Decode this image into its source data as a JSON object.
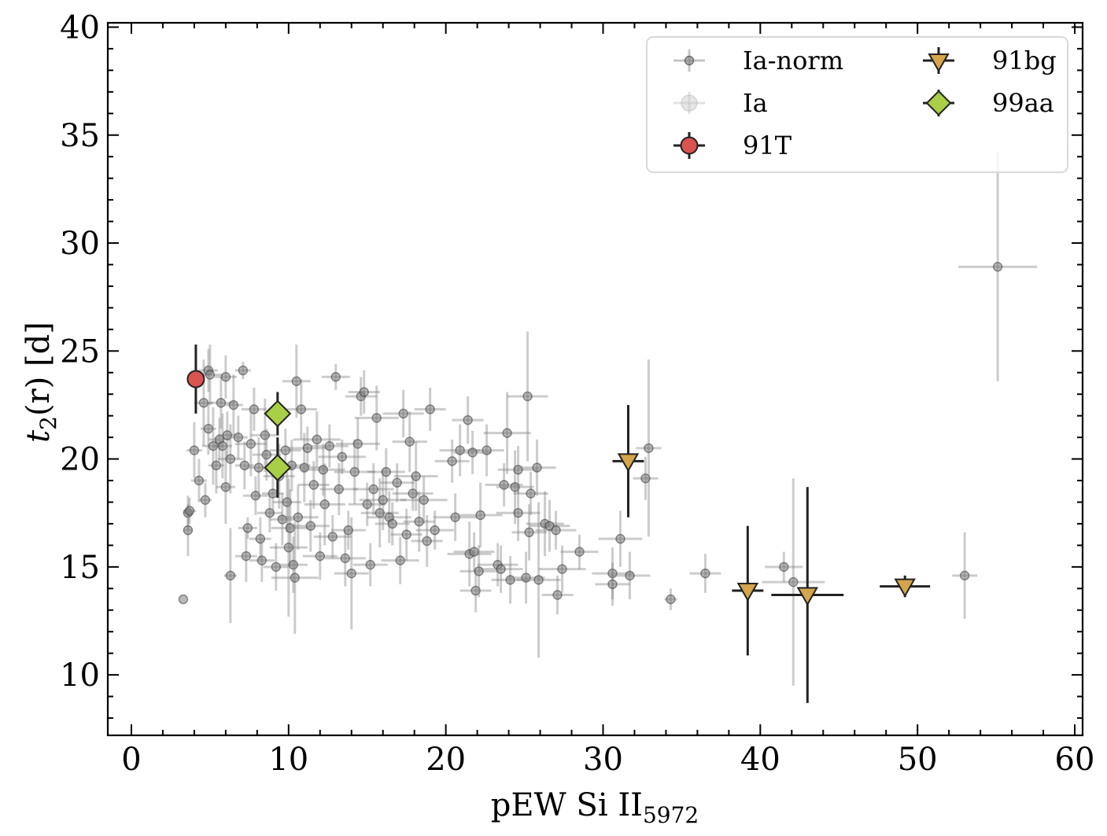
{
  "chart_data": {
    "type": "scatter",
    "title": "",
    "xlabel": {
      "main": "pEW Si II",
      "subscript": "5972"
    },
    "ylabel": {
      "t": "t",
      "sub": "2",
      "rest": "(r) [d]"
    },
    "xlim": [
      -1.5,
      60.5
    ],
    "ylim": [
      7.2,
      40.2
    ],
    "xticks": [
      0,
      10,
      20,
      30,
      40,
      50,
      60
    ],
    "yticks": [
      10,
      15,
      20,
      25,
      30,
      35,
      40
    ],
    "xtick_labels": [
      "0",
      "10",
      "20",
      "30",
      "40",
      "50",
      "60"
    ],
    "ytick_labels": [
      "10",
      "15",
      "20",
      "25",
      "30",
      "35",
      "40"
    ],
    "legend": {
      "position": "top-right",
      "entries": [
        {
          "name": "Ia-norm",
          "marker": "circle-small",
          "color": "#808080"
        },
        {
          "name": "Ia",
          "marker": "circle-faint",
          "color": "#c8c8c8"
        },
        {
          "name": "91T",
          "marker": "circle",
          "color": "#d9534f"
        },
        {
          "name": "91bg",
          "marker": "triangle-down",
          "color": "#d4a54c"
        },
        {
          "name": "99aa",
          "marker": "diamond",
          "color": "#a8cf45"
        }
      ]
    },
    "series": [
      {
        "name": "Ia-norm",
        "color": "#808080",
        "points": [
          [
            3.3,
            13.5,
            0,
            0
          ],
          [
            3.6,
            17.5,
            0.3,
            0.8
          ],
          [
            3.6,
            16.7,
            0.3,
            1.2
          ],
          [
            3.7,
            17.6,
            0.4,
            0.6
          ],
          [
            4.0,
            20.4,
            0.5,
            1.3
          ],
          [
            4.3,
            19.0,
            0.5,
            1.0
          ],
          [
            4.6,
            22.6,
            0.6,
            2.0
          ],
          [
            4.7,
            18.1,
            0.4,
            0.8
          ],
          [
            4.9,
            24.1,
            0.6,
            1.0
          ],
          [
            5.0,
            23.9,
            0.8,
            1.4
          ],
          [
            4.9,
            21.4,
            0.5,
            1.2
          ],
          [
            5.2,
            20.6,
            0.7,
            1.8
          ],
          [
            5.4,
            19.7,
            0.5,
            1.3
          ],
          [
            5.6,
            20.9,
            0.7,
            1.0
          ],
          [
            5.7,
            22.6,
            0.9,
            1.2
          ],
          [
            5.8,
            20.6,
            0.6,
            1.5
          ],
          [
            6.0,
            23.8,
            0.7,
            1.0
          ],
          [
            6.0,
            18.7,
            0.6,
            1.7
          ],
          [
            6.1,
            21.1,
            0.6,
            1.1
          ],
          [
            6.3,
            20.0,
            0.8,
            1.6
          ],
          [
            6.3,
            14.6,
            0.4,
            2.2
          ],
          [
            6.5,
            22.5,
            0.6,
            1.4
          ],
          [
            6.8,
            21.0,
            0.6,
            1.0
          ],
          [
            7.1,
            24.1,
            0.5,
            0.4
          ],
          [
            7.2,
            19.7,
            0.6,
            1.1
          ],
          [
            7.3,
            15.5,
            0.7,
            1.2
          ],
          [
            7.4,
            16.8,
            0.6,
            0.5
          ],
          [
            7.6,
            20.7,
            1.0,
            1.5
          ],
          [
            7.8,
            22.3,
            0.8,
            1.0
          ],
          [
            7.9,
            18.3,
            0.8,
            0.9
          ],
          [
            8.1,
            19.6,
            0.8,
            1.4
          ],
          [
            8.2,
            16.3,
            0.7,
            1.0
          ],
          [
            8.3,
            15.3,
            0.8,
            1.0
          ],
          [
            8.5,
            21.1,
            0.9,
            1.7
          ],
          [
            8.6,
            20.2,
            0.9,
            1.2
          ],
          [
            8.8,
            17.5,
            0.8,
            0.9
          ],
          [
            9.0,
            18.4,
            0.7,
            1.0
          ],
          [
            9.2,
            15.0,
            0.8,
            1.1
          ],
          [
            9.4,
            19.2,
            1.0,
            1.5
          ],
          [
            9.6,
            17.2,
            0.8,
            1.2
          ],
          [
            9.8,
            20.4,
            1.0,
            1.0
          ],
          [
            9.9,
            18.0,
            0.9,
            1.4
          ],
          [
            10.0,
            15.9,
            1.2,
            3.2
          ],
          [
            10.1,
            16.8,
            1.2,
            1.8
          ],
          [
            10.2,
            19.7,
            1.2,
            1.2
          ],
          [
            10.3,
            15.1,
            0.9,
            1.3
          ],
          [
            10.4,
            14.5,
            1.5,
            2.6
          ],
          [
            10.5,
            23.6,
            0.9,
            1.7
          ],
          [
            10.6,
            17.3,
            1.3,
            1.5
          ],
          [
            10.8,
            22.3,
            1.0,
            1.4
          ],
          [
            11.0,
            19.6,
            1.4,
            1.6
          ],
          [
            11.2,
            20.5,
            1.3,
            1.0
          ],
          [
            11.4,
            16.9,
            1.2,
            1.2
          ],
          [
            11.6,
            18.8,
            1.0,
            1.1
          ],
          [
            11.8,
            20.9,
            1.5,
            1.3
          ],
          [
            12.0,
            15.5,
            1.1,
            1.1
          ],
          [
            12.2,
            19.5,
            1.4,
            1.2
          ],
          [
            12.3,
            17.9,
            1.3,
            1.9
          ],
          [
            12.6,
            20.6,
            1.2,
            1.0
          ],
          [
            12.8,
            16.4,
            1.2,
            1.0
          ],
          [
            13.0,
            23.8,
            0.9,
            0.6
          ],
          [
            13.2,
            18.6,
            1.2,
            1.2
          ],
          [
            13.4,
            20.1,
            1.5,
            0.8
          ],
          [
            13.6,
            15.4,
            1.3,
            1.3
          ],
          [
            13.8,
            16.7,
            1.1,
            0.9
          ],
          [
            14.0,
            14.7,
            1.1,
            2.6
          ],
          [
            14.2,
            19.4,
            1.3,
            1.5
          ],
          [
            14.4,
            20.7,
            1.4,
            1.2
          ],
          [
            14.6,
            22.9,
            1.0,
            0.9
          ],
          [
            14.8,
            23.1,
            1.0,
            1.0
          ],
          [
            15.0,
            17.9,
            1.2,
            1.0
          ],
          [
            15.2,
            15.1,
            1.1,
            1.0
          ],
          [
            15.4,
            18.6,
            1.3,
            1.2
          ],
          [
            15.6,
            21.9,
            1.4,
            1.5
          ],
          [
            15.8,
            17.5,
            1.2,
            1.6
          ],
          [
            16.0,
            18.1,
            1.5,
            1.4
          ],
          [
            16.2,
            19.4,
            1.2,
            1.1
          ],
          [
            16.4,
            17.3,
            1.4,
            1.2
          ],
          [
            16.6,
            17.0,
            1.1,
            1.0
          ],
          [
            16.9,
            18.9,
            1.1,
            0.9
          ],
          [
            17.1,
            15.3,
            1.2,
            1.1
          ],
          [
            17.3,
            22.1,
            1.3,
            1.1
          ],
          [
            17.5,
            16.5,
            1.0,
            1.2
          ],
          [
            17.7,
            20.8,
            1.1,
            1.4
          ],
          [
            17.9,
            18.4,
            1.3,
            0.8
          ],
          [
            18.1,
            19.2,
            1.4,
            1.6
          ],
          [
            18.3,
            17.1,
            1.0,
            1.4
          ],
          [
            18.6,
            18.1,
            1.5,
            1.1
          ],
          [
            18.8,
            16.2,
            1.0,
            1.2
          ],
          [
            19.0,
            22.3,
            1.0,
            1.0
          ],
          [
            19.3,
            16.7,
            1.2,
            0.9
          ],
          [
            20.4,
            19.9,
            1.1,
            1.0
          ],
          [
            20.6,
            17.3,
            1.4,
            1.1
          ],
          [
            20.9,
            20.4,
            1.3,
            1.2
          ],
          [
            21.4,
            21.8,
            1.0,
            1.1
          ],
          [
            21.5,
            15.6,
            1.4,
            1.5
          ],
          [
            21.7,
            20.3,
            1.2,
            1.0
          ],
          [
            21.8,
            15.7,
            1.3,
            0.9
          ],
          [
            21.9,
            13.9,
            1.0,
            1.0
          ],
          [
            22.1,
            14.8,
            1.2,
            1.2
          ],
          [
            22.2,
            17.4,
            1.4,
            1.5
          ],
          [
            22.6,
            20.4,
            1.1,
            1.2
          ],
          [
            23.3,
            15.1,
            1.3,
            1.0
          ],
          [
            23.5,
            14.9,
            1.4,
            1.1
          ],
          [
            23.7,
            18.8,
            1.2,
            1.0
          ],
          [
            23.9,
            21.2,
            1.5,
            1.9
          ],
          [
            24.1,
            14.4,
            1.2,
            1.1
          ],
          [
            24.4,
            18.7,
            1.2,
            1.7
          ],
          [
            24.6,
            19.5,
            1.3,
            1.1
          ],
          [
            24.6,
            17.5,
            1.4,
            1.3
          ],
          [
            25.1,
            14.5,
            1.2,
            1.2
          ],
          [
            25.2,
            22.9,
            1.3,
            3.0
          ],
          [
            25.3,
            16.6,
            1.1,
            1.3
          ],
          [
            25.4,
            18.4,
            1.1,
            1.0
          ],
          [
            25.8,
            19.6,
            1.2,
            1.3
          ],
          [
            25.9,
            14.4,
            1.4,
            3.6
          ],
          [
            26.3,
            17.0,
            1.2,
            1.5
          ],
          [
            26.6,
            16.9,
            1.3,
            1.2
          ],
          [
            27.0,
            16.7,
            1.3,
            0.9
          ],
          [
            27.1,
            13.7,
            1.0,
            0.9
          ],
          [
            27.4,
            14.9,
            1.5,
            1.1
          ],
          [
            28.5,
            15.7,
            1.2,
            0.8
          ],
          [
            30.6,
            14.7,
            1.3,
            1.2
          ],
          [
            30.6,
            14.2,
            1.1,
            1.0
          ],
          [
            31.1,
            16.3,
            1.4,
            1.3
          ],
          [
            31.7,
            14.6,
            1.3,
            1.1
          ],
          [
            32.7,
            19.1,
            0.8,
            1.0
          ],
          [
            32.9,
            20.5,
            0.8,
            4.1
          ],
          [
            34.3,
            13.5,
            0.4,
            0.5
          ],
          [
            36.5,
            14.7,
            1.0,
            0.9
          ],
          [
            41.5,
            15.0,
            1.2,
            0.7
          ],
          [
            42.1,
            14.3,
            2.0,
            4.8
          ],
          [
            53.0,
            14.6,
            0.8,
            2.0
          ],
          [
            55.1,
            28.9,
            2.5,
            5.3
          ]
        ]
      },
      {
        "name": "91T",
        "color": "#d9534f",
        "points": [
          [
            4.1,
            23.7,
            0,
            1.6
          ]
        ]
      },
      {
        "name": "91bg",
        "color": "#d4a54c",
        "points": [
          [
            31.6,
            19.9,
            1.0,
            2.6
          ],
          [
            39.2,
            13.9,
            1.0,
            3.0
          ],
          [
            43.0,
            13.7,
            2.3,
            5.0
          ],
          [
            49.2,
            14.1,
            1.6,
            0.5
          ]
        ]
      },
      {
        "name": "99aa",
        "color": "#a8cf45",
        "points": [
          [
            9.3,
            22.1,
            0.8,
            1.0
          ],
          [
            9.3,
            19.6,
            0.8,
            1.4
          ]
        ]
      }
    ]
  }
}
